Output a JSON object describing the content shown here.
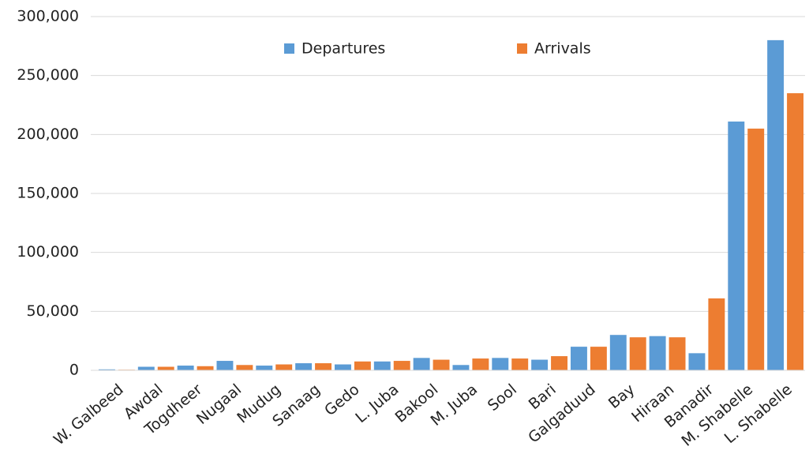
{
  "chart_data": {
    "type": "bar",
    "categories": [
      "W. Galbeed",
      "Awdal",
      "Togdheer",
      "Nugaal",
      "Mudug",
      "Sanaag",
      "Gedo",
      "L. Juba",
      "Bakool",
      "M. Juba",
      "Sool",
      "Bari",
      "Galgaduud",
      "Bay",
      "Hiraan",
      "Banadir",
      "M. Shabelle",
      "L. Shabelle"
    ],
    "series": [
      {
        "name": "Departures",
        "color": "#5b9bd5",
        "values": [
          800,
          3000,
          4000,
          8000,
          4000,
          6000,
          5000,
          7500,
          10500,
          4500,
          10500,
          9000,
          20000,
          30000,
          29000,
          14500,
          211000,
          280000
        ]
      },
      {
        "name": "Arrivals",
        "color": "#ed7d31",
        "values": [
          500,
          3000,
          3500,
          4500,
          5000,
          6000,
          7500,
          8000,
          9000,
          10000,
          10000,
          12000,
          20000,
          28000,
          28000,
          61000,
          205000,
          235000
        ]
      }
    ],
    "ylim": [
      0,
      300000
    ],
    "yticks": [
      0,
      {
        "value": 50000,
        "label": "50,000"
      },
      {
        "value": 100000,
        "label": "100,000"
      },
      {
        "value": 150000,
        "label": "150,000"
      },
      {
        "value": 200000,
        "label": "200,000"
      },
      {
        "value": 250000,
        "label": "250,000"
      },
      {
        "value": 300000,
        "label": "300,000"
      }
    ],
    "grid": true
  }
}
